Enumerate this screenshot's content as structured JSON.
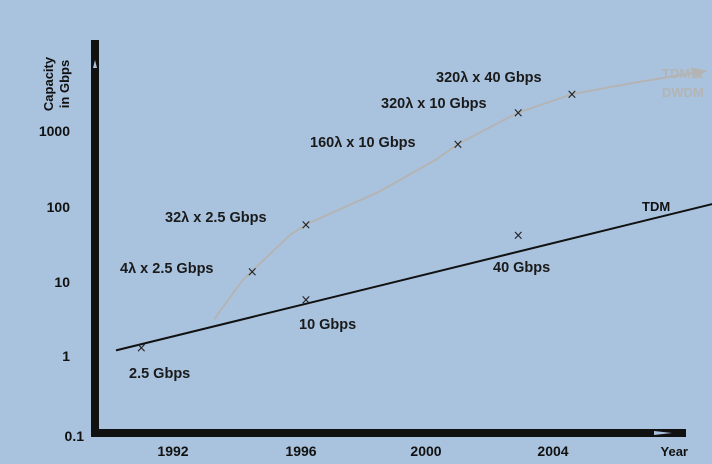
{
  "chart_data": {
    "type": "line",
    "ylabel_line1": "Capacity",
    "ylabel_line2": "in Gbps",
    "xlabel": "Year",
    "y_scale": "log",
    "ylim": [
      0.1,
      5000
    ],
    "xlim": [
      1989,
      2011
    ],
    "x_ticks": [
      1992,
      1996,
      2000,
      2004
    ],
    "x_tick_labels": [
      "1992",
      "1996",
      "2000",
      "2004"
    ],
    "y_ticks": [
      0.1,
      1,
      10,
      100,
      1000
    ],
    "y_tick_labels": [
      "0.1",
      "1",
      "10",
      "100",
      "1000"
    ],
    "background_color": "#a9c3df",
    "series": [
      {
        "name": "TDM",
        "color": "#111111",
        "x": [
          1990.2,
          2009.5
        ],
        "y": [
          1.15,
          115
        ],
        "markers": [
          {
            "x": 1991,
            "y": 1.25,
            "label": "2.5 Gbps"
          },
          {
            "x": 1996.2,
            "y": 5.5,
            "label": "10 Gbps"
          },
          {
            "x": 2002.9,
            "y": 40,
            "label": "40 Gbps"
          }
        ]
      },
      {
        "name": "TDM & DWDM",
        "color": "#b4b4b4",
        "x": [
          1993.3,
          1994.2,
          1995.7,
          1996.2,
          1998.5,
          2000.3,
          2001,
          2002.2,
          2002.9,
          2004.6,
          2006.6,
          2008.7
        ],
        "y": [
          3,
          10,
          40,
          55,
          150,
          400,
          650,
          1200,
          1700,
          3000,
          4300,
          6000
        ],
        "markers": [
          {
            "x": 1994.5,
            "y": 13,
            "label": "4λ x 2.5 Gbps"
          },
          {
            "x": 1996.2,
            "y": 55,
            "label": "32λ x 2.5 Gbps"
          },
          {
            "x": 2001,
            "y": 650,
            "label": "160λ x 10 Gbps"
          },
          {
            "x": 2002.9,
            "y": 1700,
            "label": "320λ x 10 Gbps"
          },
          {
            "x": 2004.6,
            "y": 3000,
            "label": "320λ x 40 Gbps"
          }
        ]
      }
    ],
    "series_end_labels": {
      "tdm": "TDM",
      "dwdm_line1": "TDM &",
      "dwdm_line2": "DWDM"
    }
  }
}
